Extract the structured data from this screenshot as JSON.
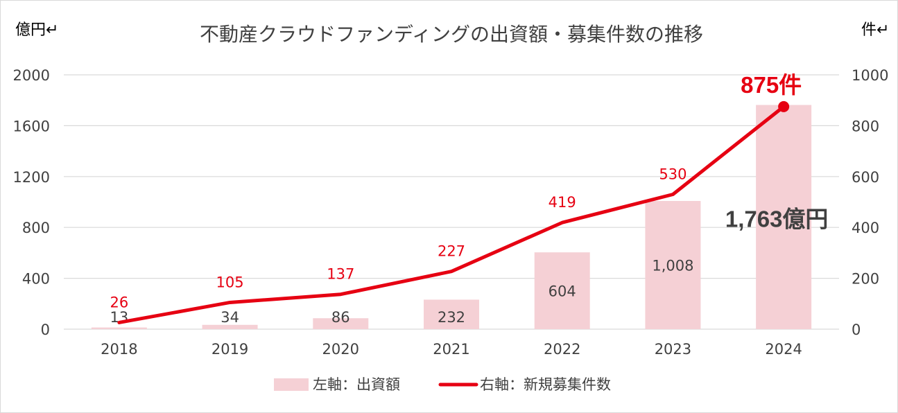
{
  "chart_data": {
    "type": "bar",
    "title": "不動産クラウドファンディングの出資額・募集件数の推移",
    "left_unit": "億円↵",
    "right_unit": "件↵",
    "categories": [
      "2018",
      "2019",
      "2020",
      "2021",
      "2022",
      "2023",
      "2024"
    ],
    "left_axis": {
      "ylim": [
        0,
        2000
      ],
      "ticks": [
        "0",
        "400",
        "800",
        "1200",
        "1600",
        "2000"
      ]
    },
    "right_axis": {
      "ylim": [
        0,
        1000
      ],
      "ticks": [
        "0",
        "200",
        "400",
        "600",
        "800",
        "1000"
      ]
    },
    "grid": true,
    "legend_position": "bottom",
    "series": [
      {
        "name": "左軸：出資額",
        "type": "bar",
        "axis": "left",
        "color": "#f5d0d5",
        "values": [
          13,
          34,
          86,
          232,
          604,
          1008,
          1763
        ],
        "labels": [
          "13",
          "34",
          "86",
          "232",
          "604",
          "1,008",
          "1,763億円"
        ]
      },
      {
        "name": "右軸：新規募集件数",
        "type": "line",
        "axis": "right",
        "color": "#e60012",
        "values": [
          26,
          105,
          137,
          227,
          419,
          530,
          875
        ],
        "labels": [
          "26",
          "105",
          "137",
          "227",
          "419",
          "530",
          "875件"
        ]
      }
    ],
    "text_color": "#404040",
    "grid_color": "#d9d9d9",
    "border_color": "#d9d9d9"
  }
}
